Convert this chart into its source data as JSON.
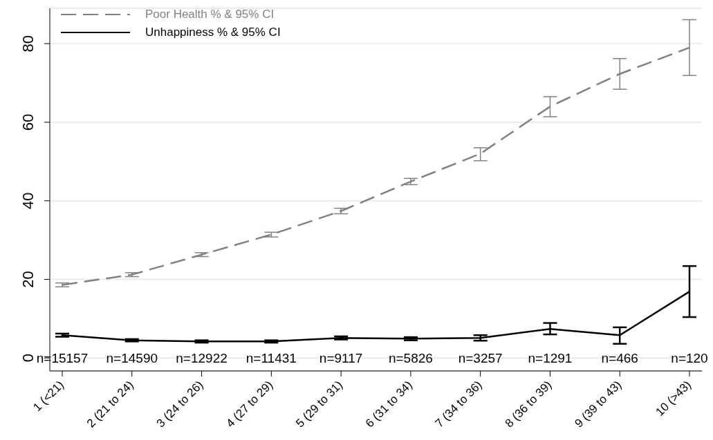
{
  "chart_data": {
    "type": "line",
    "categories": [
      "1 (<21)",
      "2 (21 to 24)",
      "3 (24 to 26)",
      "4 (27 to 29)",
      "5 (29 to 31)",
      "6 (31 to 34)",
      "7 (34 to 36)",
      "8 (36 to 39)",
      "9 (39 to 43)",
      "10 (>43)"
    ],
    "series": [
      {
        "name": "Poor Health % & 95% CI",
        "color": "#808080",
        "line_style": "dashed",
        "values": [
          18.6,
          21.2,
          26.3,
          31.4,
          37.4,
          44.9,
          52.0,
          64.0,
          72.3,
          79.0
        ],
        "errors": [
          [
            18.1,
            19.1
          ],
          [
            20.7,
            21.7
          ],
          [
            25.8,
            26.8
          ],
          [
            30.8,
            32.0
          ],
          [
            36.7,
            38.1
          ],
          [
            44.1,
            45.7
          ],
          [
            50.2,
            53.5
          ],
          [
            61.4,
            66.5
          ],
          [
            68.4,
            76.2
          ],
          [
            71.9,
            86.1
          ]
        ]
      },
      {
        "name": "Unhappiness % & 95% CI",
        "color": "#000000",
        "line_style": "solid",
        "values": [
          5.8,
          4.5,
          4.2,
          4.2,
          5.1,
          4.9,
          5.1,
          7.4,
          5.8,
          16.9
        ],
        "errors": [
          [
            5.4,
            6.2
          ],
          [
            4.2,
            4.8
          ],
          [
            3.9,
            4.5
          ],
          [
            3.9,
            4.5
          ],
          [
            4.7,
            5.5
          ],
          [
            4.5,
            5.3
          ],
          [
            4.4,
            5.8
          ],
          [
            6.0,
            8.9
          ],
          [
            3.6,
            7.8
          ],
          [
            10.4,
            23.4
          ]
        ]
      }
    ],
    "ylim": [
      -3.3,
      89
    ],
    "yticks": [
      0,
      20,
      40,
      60,
      80
    ],
    "grid": "y",
    "legend": "top left",
    "marker": "none",
    "annotations": [
      "n=15157",
      "n=14590",
      "n=12922",
      "n=11431",
      "n=9117",
      "n=5826",
      "n=3257",
      "n=1291",
      "n=466",
      "n=120"
    ]
  }
}
